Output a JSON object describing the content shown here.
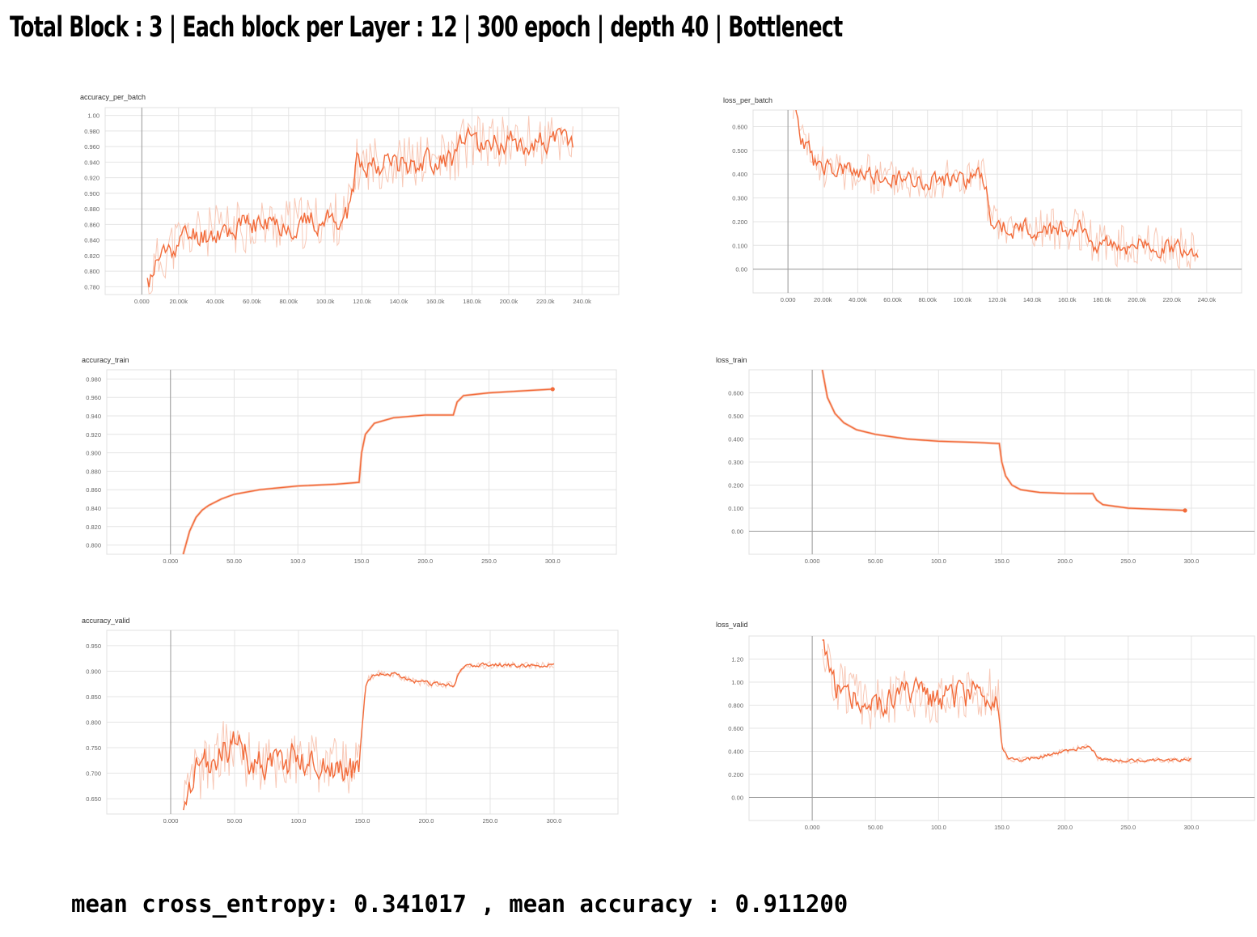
{
  "page": {
    "title": "Total Block : 3 | Each block per Layer : 12 | 300 epoch | depth 40 | Bottlenect",
    "summary": "mean cross_entropy: 0.341017 , mean accuracy : 0.911200"
  },
  "colors": {
    "smoothed": "#f26b3a",
    "raw": "#f8c8b6",
    "background": "#ffffff"
  },
  "chart_data": [
    {
      "id": "accuracy_per_batch",
      "type": "line",
      "title": "accuracy_per_batch",
      "xlim": [
        -20000,
        260000
      ],
      "ylim": [
        0.77,
        1.01
      ],
      "x_ticks": [
        0,
        20000,
        40000,
        60000,
        80000,
        100000,
        120000,
        140000,
        160000,
        180000,
        200000,
        220000,
        240000
      ],
      "x_tick_labels": [
        "0.000",
        "20.00k",
        "40.00k",
        "60.00k",
        "80.00k",
        "100.0k",
        "120.0k",
        "140.0k",
        "160.0k",
        "180.0k",
        "200.0k",
        "220.0k",
        "240.0k"
      ],
      "y_ticks": [
        0.78,
        0.8,
        0.82,
        0.84,
        0.86,
        0.88,
        0.9,
        0.92,
        0.94,
        0.96,
        0.98,
        1.0
      ],
      "y_tick_labels": [
        "0.780",
        "0.800",
        "0.820",
        "0.840",
        "0.860",
        "0.880",
        "0.900",
        "0.920",
        "0.940",
        "0.960",
        "0.980",
        "1.00"
      ],
      "zero_x": 0,
      "grid": true,
      "noisy": true,
      "raw_noise": 0.035,
      "smooth_noise": 0.014,
      "seed": 11,
      "series": [
        {
          "x": [
            3000,
            8000,
            15000,
            25000,
            40000,
            60000,
            80000,
            100000,
            112000,
            117000,
            125000,
            150000,
            170000,
            175000,
            185000,
            210000,
            235000
          ],
          "y": [
            0.78,
            0.81,
            0.83,
            0.845,
            0.85,
            0.86,
            0.86,
            0.865,
            0.87,
            0.935,
            0.94,
            0.94,
            0.945,
            0.965,
            0.965,
            0.965,
            0.968
          ]
        }
      ]
    },
    {
      "id": "loss_per_batch",
      "type": "line",
      "title": "loss_per_batch",
      "xlim": [
        -20000,
        260000
      ],
      "ylim": [
        -0.1,
        0.67
      ],
      "x_ticks": [
        0,
        20000,
        40000,
        60000,
        80000,
        100000,
        120000,
        140000,
        160000,
        180000,
        200000,
        220000,
        240000
      ],
      "x_tick_labels": [
        "0.000",
        "20.00k",
        "40.00k",
        "60.00k",
        "80.00k",
        "100.0k",
        "120.0k",
        "140.0k",
        "160.0k",
        "180.0k",
        "200.0k",
        "220.0k",
        "240.0k"
      ],
      "y_ticks": [
        0,
        0.1,
        0.2,
        0.3,
        0.4,
        0.5,
        0.6
      ],
      "y_tick_labels": [
        "0.00",
        "0.100",
        "0.200",
        "0.300",
        "0.400",
        "0.500",
        "0.600"
      ],
      "zero_x": 0,
      "zero_y": 0,
      "grid": true,
      "noisy": true,
      "raw_noise": 0.09,
      "smooth_noise": 0.035,
      "seed": 23,
      "series": [
        {
          "x": [
            3000,
            8000,
            15000,
            25000,
            40000,
            60000,
            80000,
            100000,
            112000,
            117000,
            125000,
            150000,
            170000,
            175000,
            185000,
            210000,
            235000
          ],
          "y": [
            0.7,
            0.55,
            0.45,
            0.42,
            0.4,
            0.38,
            0.38,
            0.38,
            0.39,
            0.19,
            0.17,
            0.17,
            0.17,
            0.11,
            0.1,
            0.1,
            0.08
          ]
        }
      ]
    },
    {
      "id": "accuracy_train",
      "type": "line",
      "title": "accuracy_train",
      "xlim": [
        -50,
        350
      ],
      "ylim": [
        0.79,
        0.99
      ],
      "x_ticks": [
        0,
        50,
        100,
        150,
        200,
        250,
        300
      ],
      "x_tick_labels": [
        "0.000",
        "50.00",
        "100.0",
        "150.0",
        "200.0",
        "250.0",
        "300.0"
      ],
      "y_ticks": [
        0.8,
        0.82,
        0.84,
        0.86,
        0.88,
        0.9,
        0.92,
        0.94,
        0.96,
        0.98
      ],
      "y_tick_labels": [
        "0.800",
        "0.820",
        "0.840",
        "0.860",
        "0.880",
        "0.900",
        "0.920",
        "0.940",
        "0.960",
        "0.980"
      ],
      "zero_x": 0,
      "grid": true,
      "noisy": false,
      "end_marker": true,
      "series": [
        {
          "x": [
            10,
            15,
            20,
            25,
            30,
            40,
            50,
            70,
            100,
            130,
            148,
            150,
            153,
            160,
            175,
            200,
            222,
            225,
            230,
            250,
            300
          ],
          "y": [
            0.79,
            0.815,
            0.83,
            0.838,
            0.843,
            0.85,
            0.855,
            0.86,
            0.864,
            0.866,
            0.868,
            0.9,
            0.92,
            0.932,
            0.938,
            0.941,
            0.941,
            0.955,
            0.962,
            0.965,
            0.969
          ]
        }
      ]
    },
    {
      "id": "loss_train",
      "type": "line",
      "title": "loss_train",
      "xlim": [
        -50,
        350
      ],
      "ylim": [
        -0.1,
        0.7
      ],
      "x_ticks": [
        0,
        50,
        100,
        150,
        200,
        250,
        300
      ],
      "x_tick_labels": [
        "0.000",
        "50.00",
        "100.0",
        "150.0",
        "200.0",
        "250.0",
        "300.0"
      ],
      "y_ticks": [
        0,
        0.1,
        0.2,
        0.3,
        0.4,
        0.5,
        0.6
      ],
      "y_tick_labels": [
        "0.00",
        "0.100",
        "0.200",
        "0.300",
        "0.400",
        "0.500",
        "0.600"
      ],
      "zero_x": 0,
      "zero_y": 0,
      "grid": true,
      "noisy": false,
      "end_marker": true,
      "series": [
        {
          "x": [
            8,
            12,
            18,
            25,
            35,
            50,
            75,
            100,
            130,
            148,
            150,
            153,
            158,
            165,
            180,
            200,
            222,
            225,
            230,
            250,
            295
          ],
          "y": [
            0.7,
            0.58,
            0.51,
            0.47,
            0.44,
            0.42,
            0.4,
            0.39,
            0.385,
            0.38,
            0.3,
            0.24,
            0.2,
            0.18,
            0.168,
            0.164,
            0.163,
            0.135,
            0.115,
            0.1,
            0.09
          ]
        }
      ]
    },
    {
      "id": "accuracy_valid",
      "type": "line",
      "title": "accuracy_valid",
      "xlim": [
        -50,
        350
      ],
      "ylim": [
        0.62,
        0.98
      ],
      "x_ticks": [
        0,
        50,
        100,
        150,
        200,
        250,
        300
      ],
      "x_tick_labels": [
        "0.000",
        "50.00",
        "100.0",
        "150.0",
        "200.0",
        "250.0",
        "300.0"
      ],
      "y_ticks": [
        0.65,
        0.7,
        0.75,
        0.8,
        0.85,
        0.9,
        0.95
      ],
      "y_tick_labels": [
        "0.650",
        "0.700",
        "0.750",
        "0.800",
        "0.850",
        "0.900",
        "0.950"
      ],
      "zero_x": 0,
      "grid": true,
      "noisy": true,
      "raw_noise": 0.06,
      "smooth_noise": 0.028,
      "noise_until": 148,
      "seed": 37,
      "series": [
        {
          "x": [
            10,
            20,
            30,
            40,
            50,
            60,
            80,
            100,
            120,
            140,
            147,
            150,
            153,
            160,
            175,
            190,
            205,
            222,
            225,
            230,
            250,
            300
          ],
          "y": [
            0.62,
            0.7,
            0.72,
            0.74,
            0.76,
            0.73,
            0.72,
            0.73,
            0.72,
            0.71,
            0.7,
            0.8,
            0.88,
            0.895,
            0.895,
            0.88,
            0.875,
            0.872,
            0.895,
            0.91,
            0.912,
            0.911
          ]
        }
      ]
    },
    {
      "id": "loss_valid",
      "type": "line",
      "title": "loss_valid",
      "xlim": [
        -50,
        350
      ],
      "ylim": [
        -0.2,
        1.4
      ],
      "x_ticks": [
        0,
        50,
        100,
        150,
        200,
        250,
        300
      ],
      "x_tick_labels": [
        "0.000",
        "50.00",
        "100.0",
        "150.0",
        "200.0",
        "250.0",
        "300.0"
      ],
      "y_ticks": [
        0,
        0.2,
        0.4,
        0.6,
        0.8,
        1.0,
        1.2
      ],
      "y_tick_labels": [
        "0.00",
        "0.200",
        "0.400",
        "0.600",
        "0.800",
        "1.00",
        "1.20"
      ],
      "zero_x": 0,
      "zero_y": 0,
      "grid": true,
      "noisy": true,
      "raw_noise": 0.22,
      "smooth_noise": 0.11,
      "noise_until": 148,
      "seed": 51,
      "series": [
        {
          "x": [
            8,
            15,
            30,
            45,
            50,
            60,
            80,
            100,
            120,
            140,
            147,
            150,
            155,
            165,
            180,
            200,
            220,
            225,
            230,
            250,
            300
          ],
          "y": [
            1.4,
            1.0,
            0.9,
            0.75,
            0.8,
            0.85,
            0.9,
            0.85,
            0.9,
            0.9,
            0.95,
            0.45,
            0.33,
            0.32,
            0.35,
            0.4,
            0.45,
            0.35,
            0.32,
            0.32,
            0.33
          ]
        }
      ]
    }
  ]
}
